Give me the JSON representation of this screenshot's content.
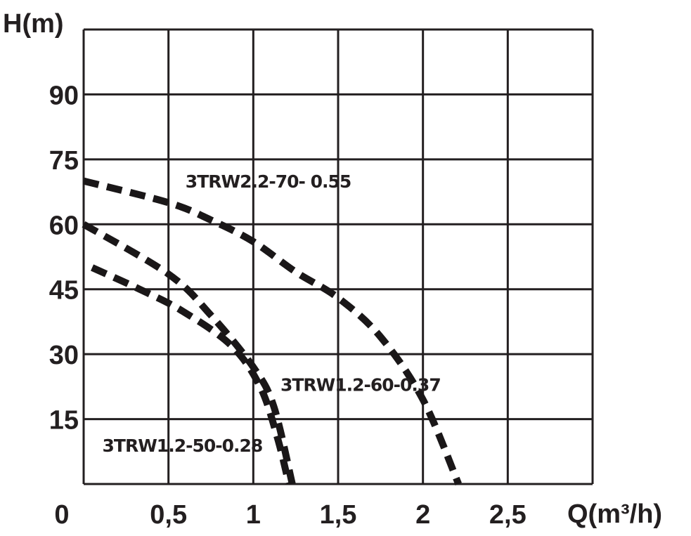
{
  "chart_data": {
    "type": "line",
    "title": "",
    "xlabel": "Q(m³/h)",
    "ylabel": "H(m)",
    "xlim": [
      0,
      3
    ],
    "ylim": [
      0,
      105
    ],
    "grid": true,
    "x_ticks": [
      0,
      0.5,
      1,
      1.5,
      2,
      2.5
    ],
    "x_tick_labels": [
      "0",
      "0,5",
      "1",
      "1,5",
      "2",
      "2,5"
    ],
    "y_ticks": [
      15,
      30,
      45,
      60,
      75,
      90
    ],
    "y_tick_labels": [
      "15",
      "30",
      "45",
      "60",
      "75",
      "90"
    ],
    "line_style": "dashed",
    "series": [
      {
        "name": "3TRW2.2-70- 0.55",
        "label_pos": [
          0.6,
          68.5
        ],
        "x": [
          0,
          0.5,
          0.75,
          1.0,
          1.25,
          1.5,
          1.75,
          2.0,
          2.21
        ],
        "y": [
          70,
          65,
          61,
          56,
          49,
          43,
          34,
          19.5,
          0
        ]
      },
      {
        "name": "3TRW1.2-60-0.37",
        "label_pos": [
          1.16,
          21.5
        ],
        "x": [
          0,
          0.5,
          0.75,
          1.0,
          1.12,
          1.23
        ],
        "y": [
          60,
          48.5,
          39,
          27,
          18,
          0
        ]
      },
      {
        "name": "3TRW1.2-50-0.28",
        "label_pos": [
          0.11,
          7.5
        ],
        "x": [
          0.05,
          0.33,
          0.58,
          0.87,
          1.04,
          1.14,
          1.21
        ],
        "y": [
          50,
          45,
          40,
          32,
          22.5,
          11,
          0
        ]
      }
    ]
  },
  "labels": {
    "y_axis_title": "H(m)",
    "x_axis_title": "Q(m³/h)"
  }
}
